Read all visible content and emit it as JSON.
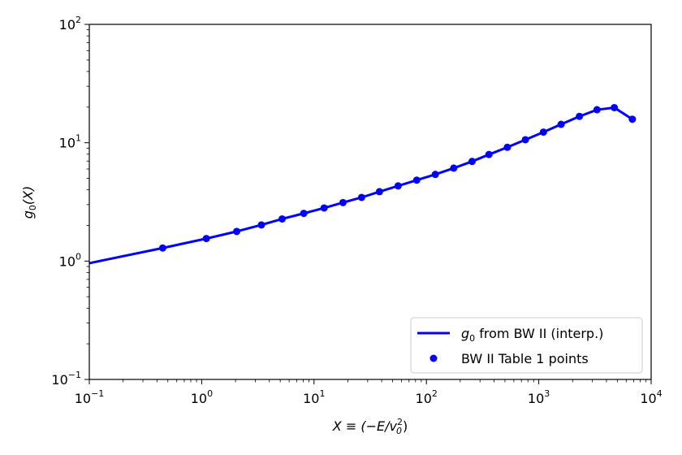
{
  "chart_data": {
    "type": "line",
    "xscale": "log",
    "yscale": "log",
    "xlim": [
      0.1,
      10000
    ],
    "ylim": [
      0.1,
      100
    ],
    "xlabel": {
      "main": "X ≡ (−E/v",
      "sub": "0",
      "sup": "2",
      "tail": ")"
    },
    "ylabel": {
      "main": "g",
      "sub": "0",
      "tail": "(X)"
    },
    "x_ticks": [
      {
        "value": 0.1,
        "base": "10",
        "exp": "−1"
      },
      {
        "value": 1,
        "base": "10",
        "exp": "0"
      },
      {
        "value": 10,
        "base": "10",
        "exp": "1"
      },
      {
        "value": 100,
        "base": "10",
        "exp": "2"
      },
      {
        "value": 1000,
        "base": "10",
        "exp": "3"
      },
      {
        "value": 10000,
        "base": "10",
        "exp": "4"
      }
    ],
    "y_ticks": [
      {
        "value": 0.1,
        "base": "10",
        "exp": "−1"
      },
      {
        "value": 1,
        "base": "10",
        "exp": "0"
      },
      {
        "value": 10,
        "base": "10",
        "exp": "1"
      },
      {
        "value": 100,
        "base": "10",
        "exp": "2"
      }
    ],
    "grid": false,
    "legend_position": "lower-right",
    "colors": {
      "series": "#0000ff"
    },
    "series": [
      {
        "name": "g0 from BW II (interp.)",
        "legend_main": "g",
        "legend_sub": "0",
        "legend_tail": " from BW II (interp.)",
        "kind": "line",
        "x": [
          0.1,
          0.45,
          1.1,
          2.05,
          3.4,
          5.2,
          8.1,
          12.3,
          18.1,
          26.5,
          38.2,
          56,
          82,
          120,
          175,
          255,
          360,
          525,
          760,
          1100,
          1580,
          2300,
          3300,
          4700,
          6800
        ],
        "y": [
          0.96,
          1.29,
          1.55,
          1.78,
          2.02,
          2.27,
          2.53,
          2.81,
          3.12,
          3.45,
          3.86,
          4.32,
          4.83,
          5.4,
          6.1,
          6.95,
          7.95,
          9.15,
          10.6,
          12.3,
          14.3,
          16.7,
          19.0,
          19.8,
          15.8
        ]
      },
      {
        "name": "BW II Table 1 points",
        "legend_main": "BW II Table 1 points",
        "kind": "scatter",
        "x": [
          0.45,
          1.1,
          2.05,
          3.4,
          5.2,
          8.1,
          12.3,
          18.1,
          26.5,
          38.2,
          56,
          82,
          120,
          175,
          255,
          360,
          525,
          760,
          1100,
          1580,
          2300,
          3300,
          4700,
          6800
        ],
        "y": [
          1.29,
          1.55,
          1.78,
          2.02,
          2.27,
          2.53,
          2.81,
          3.12,
          3.45,
          3.86,
          4.32,
          4.83,
          5.4,
          6.1,
          6.95,
          7.95,
          9.15,
          10.6,
          12.3,
          14.3,
          16.7,
          19.0,
          19.8,
          15.8
        ]
      }
    ]
  }
}
